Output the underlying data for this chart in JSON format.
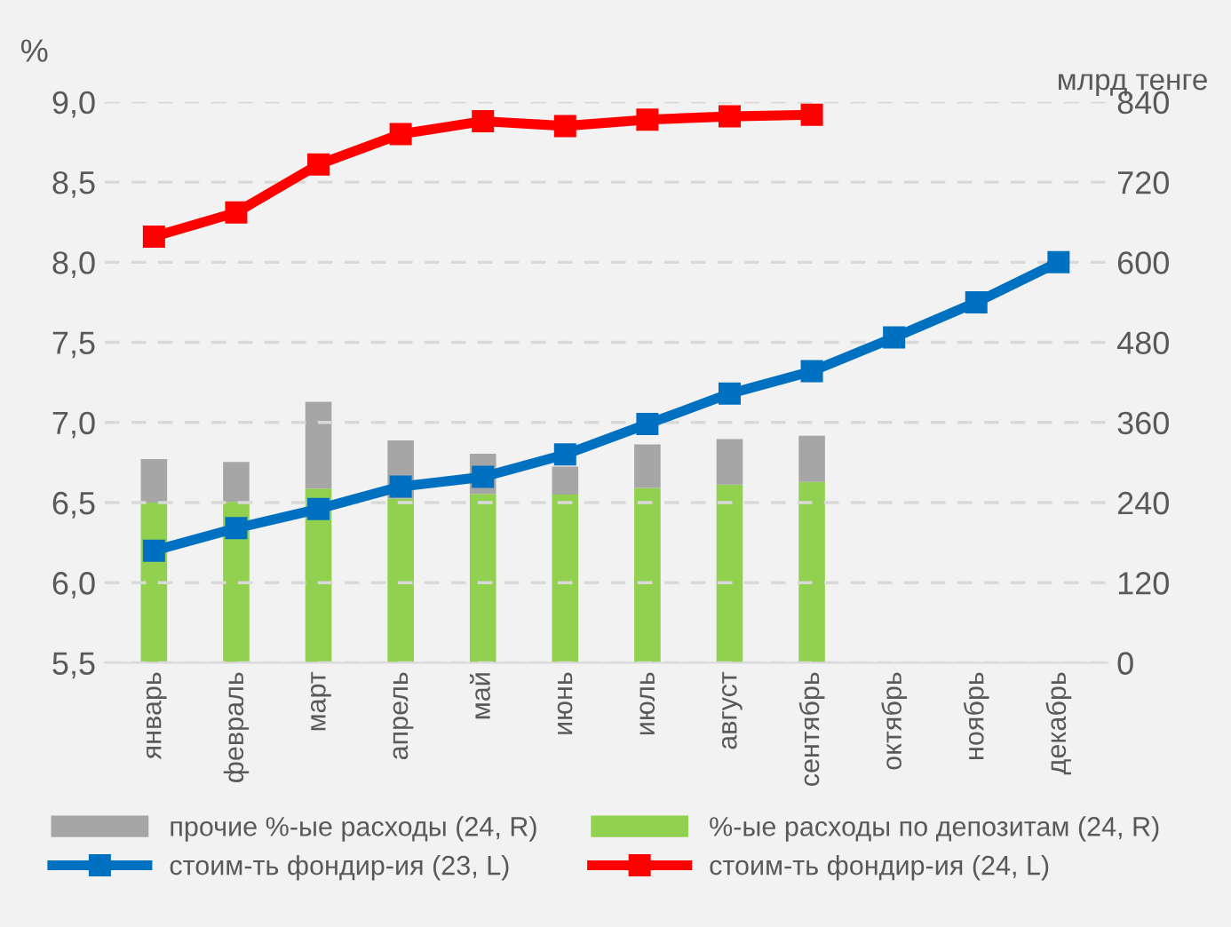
{
  "chart_data": {
    "type": "bar",
    "stacked": true,
    "ylabel": "%",
    "y2label": "млрд тенге",
    "categories": [
      "январь",
      "февраль",
      "март",
      "апрель",
      "май",
      "июнь",
      "июль",
      "август",
      "сентябрь",
      "октябрь",
      "ноябрь",
      "декабрь"
    ],
    "series": [
      {
        "name": "%-ые расходы по депозитам (24, R)",
        "color": "#92d050",
        "axis": "y2",
        "values": [
          240,
          241,
          261,
          246,
          253,
          252,
          262,
          267,
          271,
          null,
          null,
          null
        ]
      },
      {
        "name": "прочие %-ые расходы (24, R)",
        "color": "#a6a6a6",
        "axis": "y2",
        "values": [
          65,
          60,
          130,
          87,
          60,
          42,
          65,
          68,
          69,
          null,
          null,
          null
        ]
      },
      {
        "name": "стоим-ть фондир-ия (23, L)",
        "color": "#0070c0",
        "type": "line",
        "marker": "square",
        "values": [
          6.2,
          6.34,
          6.46,
          6.6,
          6.66,
          6.8,
          6.99,
          7.18,
          7.32,
          7.53,
          7.75,
          8.0
        ]
      },
      {
        "name": "стоим-ть фондир-ия (24, L)",
        "color": "#ff0000",
        "type": "line",
        "marker": "square",
        "values": [
          8.16,
          8.31,
          8.61,
          8.8,
          8.88,
          8.85,
          8.89,
          8.91,
          8.92,
          null,
          null,
          null
        ]
      }
    ],
    "ylim": [
      5.5,
      9.0
    ],
    "yticks": [
      {
        "value": 5.5,
        "label": "5,5"
      },
      {
        "value": 6.0,
        "label": "6,0"
      },
      {
        "value": 6.5,
        "label": "6,5"
      },
      {
        "value": 7.0,
        "label": "7,0"
      },
      {
        "value": 7.5,
        "label": "7,5"
      },
      {
        "value": 8.0,
        "label": "8,0"
      },
      {
        "value": 8.5,
        "label": "8,5"
      },
      {
        "value": 9.0,
        "label": "9,0"
      }
    ],
    "y2lim": [
      0,
      840
    ],
    "y2ticks": [
      0,
      120,
      240,
      360,
      480,
      600,
      720,
      840
    ],
    "grid": "y",
    "legend": "bottom"
  }
}
